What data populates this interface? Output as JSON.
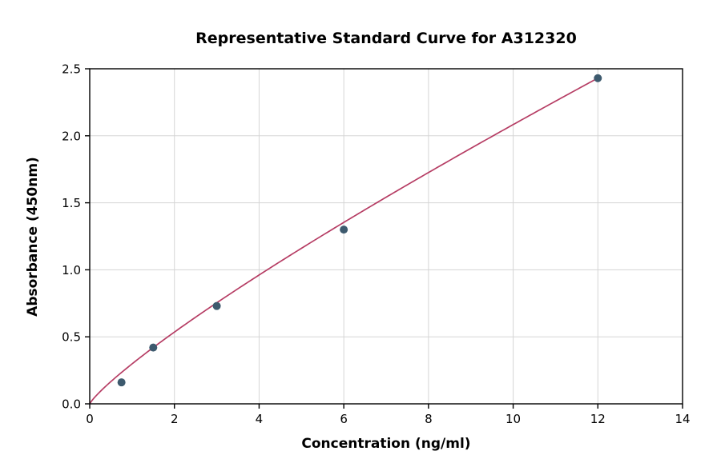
{
  "chart_data": {
    "type": "scatter",
    "title": "Representative Standard Curve for A312320",
    "xlabel": "Concentration (ng/ml)",
    "ylabel": "Absorbance (450nm)",
    "xlim": [
      0,
      14
    ],
    "ylim": [
      0,
      2.5
    ],
    "x_ticks": [
      0,
      2,
      4,
      6,
      8,
      10,
      12,
      14
    ],
    "x_tick_labels": [
      "0",
      "2",
      "4",
      "6",
      "8",
      "10",
      "12",
      "14"
    ],
    "y_ticks": [
      0,
      0.5,
      1.0,
      1.5,
      2.0,
      2.5
    ],
    "y_tick_labels": [
      "0.0",
      "0.5",
      "1.0",
      "1.5",
      "2.0",
      "2.5"
    ],
    "grid": true,
    "legend": "none",
    "points": [
      {
        "x": 0.75,
        "y": 0.16
      },
      {
        "x": 1.5,
        "y": 0.42
      },
      {
        "x": 3,
        "y": 0.73
      },
      {
        "x": 6,
        "y": 1.3
      },
      {
        "x": 12,
        "y": 2.43
      }
    ],
    "fit_curve": {
      "model": "power",
      "a": 0.2982,
      "b": 0.8443,
      "x_start": 0,
      "x_end": 12
    },
    "colors": {
      "point": "#3d5a6e",
      "curve": "#b63d64",
      "grid": "#d5d5d5",
      "axis": "#000000",
      "background": "#ffffff"
    }
  }
}
